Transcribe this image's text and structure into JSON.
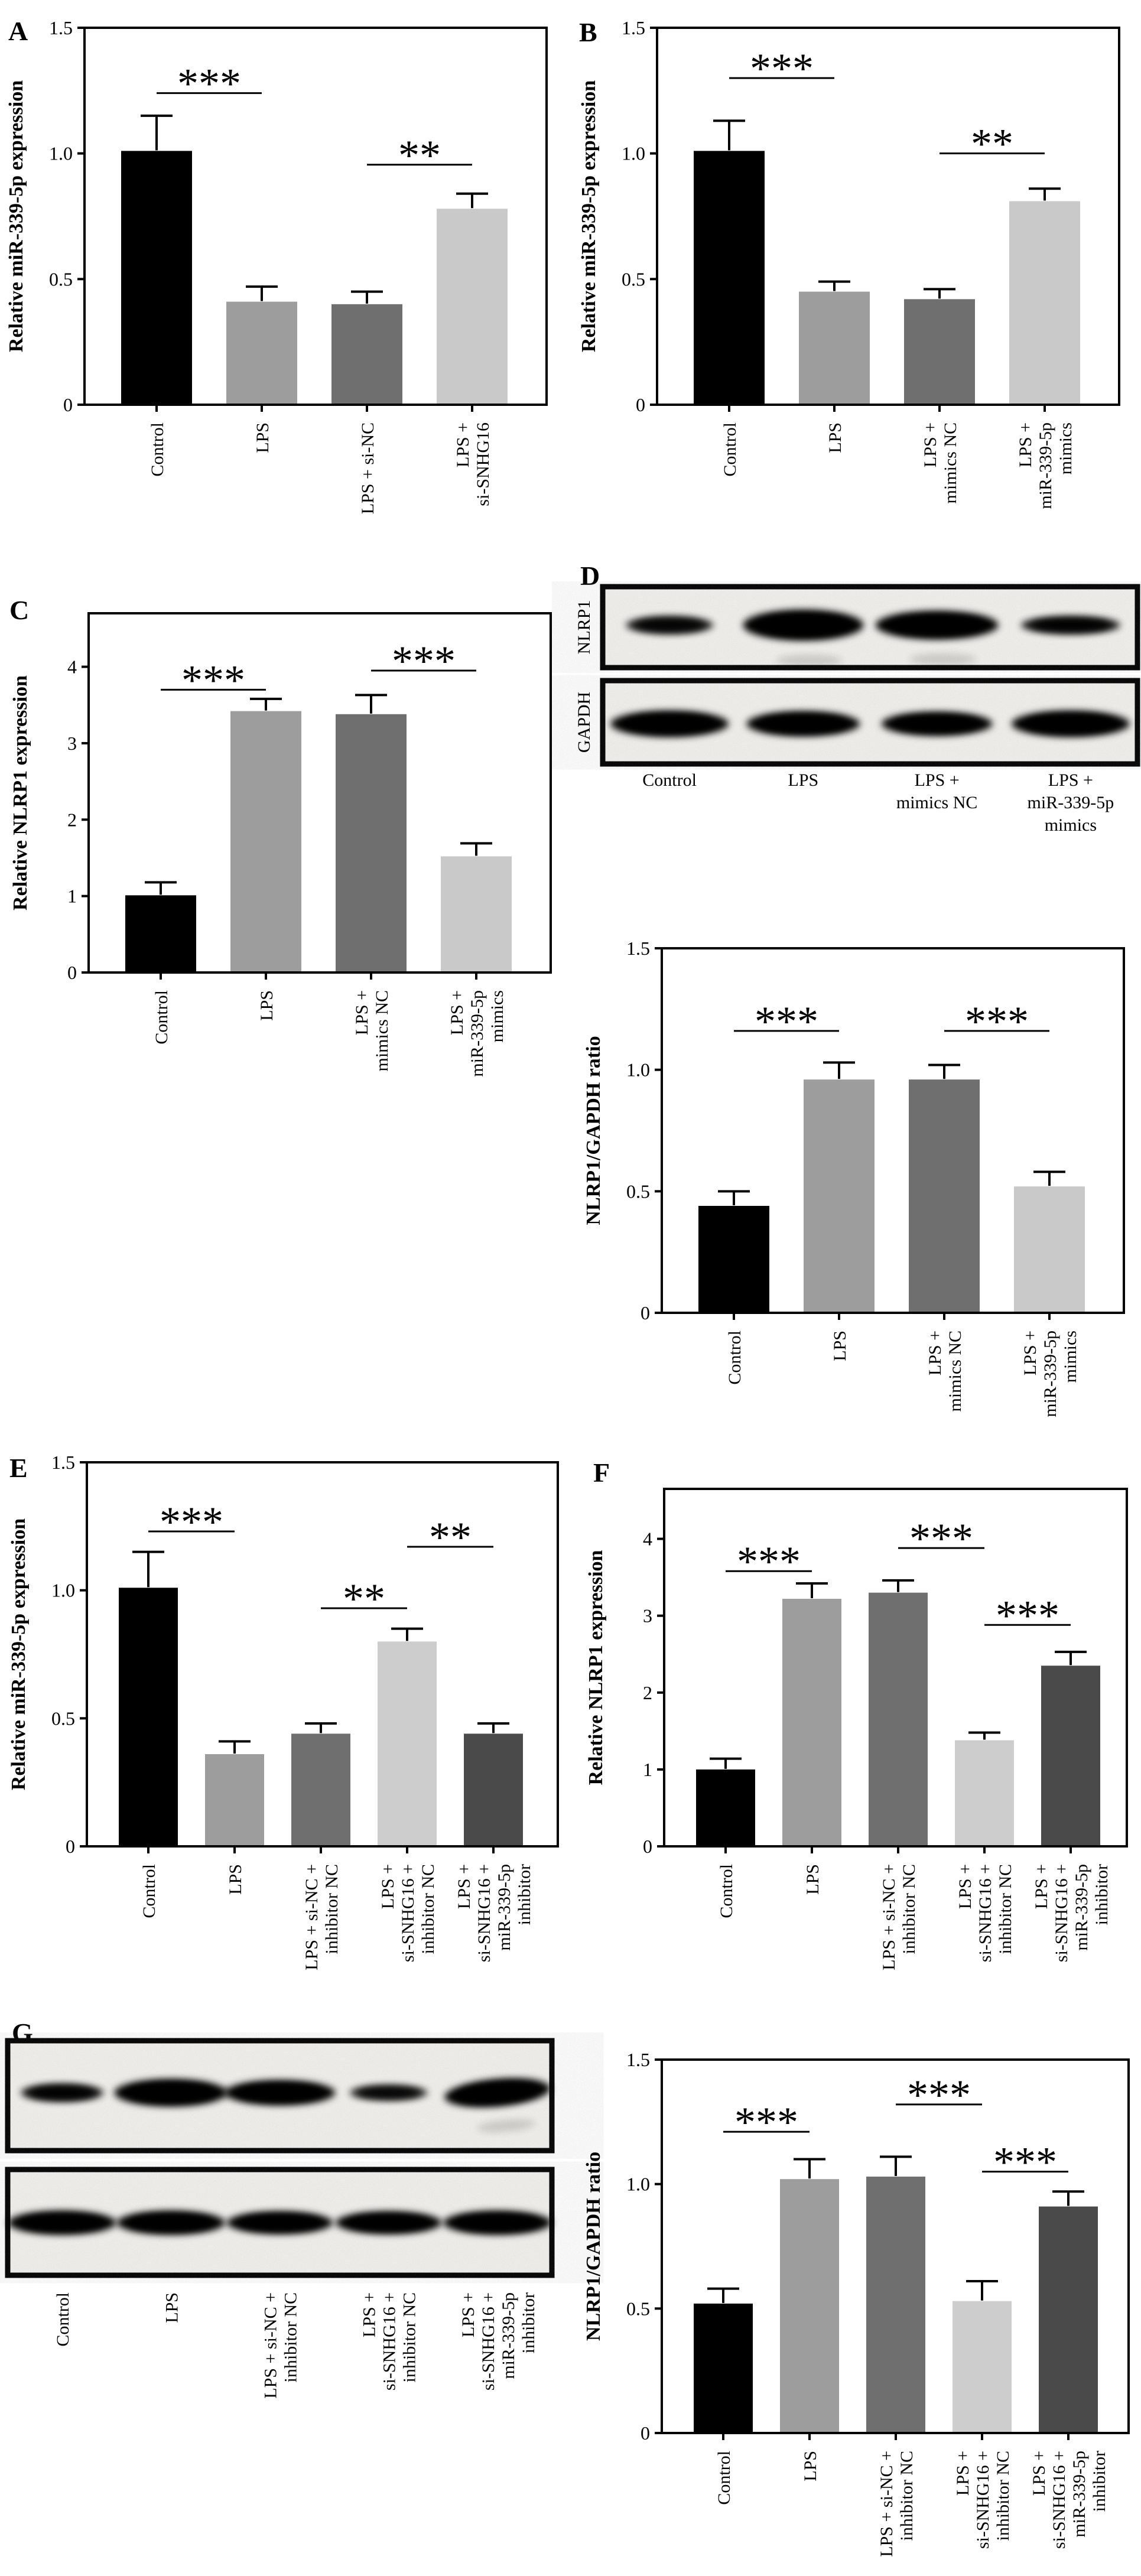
{
  "figure": {
    "panel_letters": {
      "A": "A",
      "B": "B",
      "C": "C",
      "D": "D",
      "E": "E",
      "F": "F",
      "G": "G"
    }
  },
  "chart_data": [
    {
      "panel": "A",
      "type": "bar",
      "ylabel": "Relative miR-339-5p expression",
      "ylim": [
        0,
        1.5
      ],
      "yticks": [
        {
          "v": 0,
          "label": "0"
        },
        {
          "v": 0.5,
          "label": "0.5"
        },
        {
          "v": 1.0,
          "label": "1.0"
        },
        {
          "v": 1.5,
          "label": "1.5"
        }
      ],
      "categories": [
        [
          "Control"
        ],
        [
          "LPS"
        ],
        [
          "LPS + si-NC"
        ],
        [
          "LPS +",
          "si-SNHG16"
        ]
      ],
      "values": [
        1.01,
        0.41,
        0.4,
        0.78
      ],
      "errors": [
        0.14,
        0.06,
        0.05,
        0.06
      ],
      "bar_colors": [
        "#000000",
        "#9d9d9d",
        "#6f6f6f",
        "#c9c9c9"
      ],
      "significance": [
        {
          "from": 0,
          "to": 1,
          "stars": "***",
          "y": 1.24
        },
        {
          "from": 2,
          "to": 3,
          "stars": "**",
          "y": 0.955
        }
      ]
    },
    {
      "panel": "B",
      "type": "bar",
      "ylabel": "Relative miR-339-5p expression",
      "ylim": [
        0,
        1.5
      ],
      "yticks": [
        {
          "v": 0,
          "label": "0"
        },
        {
          "v": 0.5,
          "label": "0.5"
        },
        {
          "v": 1.0,
          "label": "1.0"
        },
        {
          "v": 1.5,
          "label": "1.5"
        }
      ],
      "categories": [
        [
          "Control"
        ],
        [
          "LPS"
        ],
        [
          "LPS +",
          "mimics NC"
        ],
        [
          "LPS +",
          "miR-339-5p",
          "mimics"
        ]
      ],
      "values": [
        1.01,
        0.45,
        0.42,
        0.81
      ],
      "errors": [
        0.12,
        0.04,
        0.04,
        0.05
      ],
      "bar_colors": [
        "#000000",
        "#9d9d9d",
        "#6f6f6f",
        "#c9c9c9"
      ],
      "significance": [
        {
          "from": 0,
          "to": 1,
          "stars": "***",
          "y": 1.3
        },
        {
          "from": 2,
          "to": 3,
          "stars": "**",
          "y": 1.0
        }
      ]
    },
    {
      "panel": "C",
      "type": "bar",
      "ylabel": "Relative NLRP1 expression",
      "ylim": [
        0,
        4.7
      ],
      "yticks": [
        {
          "v": 0,
          "label": "0"
        },
        {
          "v": 1,
          "label": "1"
        },
        {
          "v": 2,
          "label": "2"
        },
        {
          "v": 3,
          "label": "3"
        },
        {
          "v": 4,
          "label": "4"
        }
      ],
      "categories": [
        [
          "Control"
        ],
        [
          "LPS"
        ],
        [
          "LPS +",
          "mimics NC"
        ],
        [
          "LPS +",
          "miR-339-5p",
          "mimics"
        ]
      ],
      "values": [
        1.01,
        3.42,
        3.38,
        1.52
      ],
      "errors": [
        0.17,
        0.16,
        0.25,
        0.17
      ],
      "bar_colors": [
        "#000000",
        "#9d9d9d",
        "#6f6f6f",
        "#c9c9c9"
      ],
      "significance": [
        {
          "from": 0,
          "to": 1,
          "stars": "***",
          "y": 3.7
        },
        {
          "from": 2,
          "to": 3,
          "stars": "***",
          "y": 3.95
        }
      ]
    },
    {
      "panel": "D",
      "type": "western_blot",
      "row_labels": [
        "NLRP1",
        "GAPDH"
      ],
      "lane_labels": [
        [
          "Control"
        ],
        [
          "LPS"
        ],
        [
          "LPS +",
          "mimics NC"
        ],
        [
          "LPS +",
          "miR-339-5p",
          "mimics"
        ]
      ],
      "lane_label_orientation": "horizontal",
      "bands": [
        [
          {
            "i": 0.88,
            "rx": 74,
            "ry": 15
          },
          {
            "i": 1,
            "rx": 102,
            "ry": 26,
            "smudge": true
          },
          {
            "i": 1,
            "rx": 104,
            "ry": 24,
            "smudge": true
          },
          {
            "i": 0.92,
            "rx": 84,
            "ry": 15
          }
        ],
        [
          {
            "i": 1,
            "rx": 100,
            "ry": 22
          },
          {
            "i": 1,
            "rx": 96,
            "ry": 21
          },
          {
            "i": 1,
            "rx": 94,
            "ry": 20
          },
          {
            "i": 1,
            "rx": 100,
            "ry": 22
          }
        ]
      ]
    },
    {
      "panel": "Dratio",
      "type": "bar",
      "ylabel": "NLRP1/GAPDH ratio",
      "ylim": [
        0,
        1.5
      ],
      "yticks": [
        {
          "v": 0,
          "label": "0"
        },
        {
          "v": 0.5,
          "label": "0.5"
        },
        {
          "v": 1.0,
          "label": "1.0"
        },
        {
          "v": 1.5,
          "label": "1.5"
        }
      ],
      "categories": [
        [
          "Control"
        ],
        [
          "LPS"
        ],
        [
          "LPS +",
          "mimics NC"
        ],
        [
          "LPS +",
          "miR-339-5p",
          "mimics"
        ]
      ],
      "values": [
        0.44,
        0.96,
        0.96,
        0.52
      ],
      "errors": [
        0.06,
        0.07,
        0.06,
        0.06
      ],
      "bar_colors": [
        "#000000",
        "#9d9d9d",
        "#6f6f6f",
        "#c9c9c9"
      ],
      "significance": [
        {
          "from": 0,
          "to": 1,
          "stars": "***",
          "y": 1.16
        },
        {
          "from": 2,
          "to": 3,
          "stars": "***",
          "y": 1.16
        }
      ]
    },
    {
      "panel": "E",
      "type": "bar",
      "ylabel": "Relative miR-339-5p expression",
      "ylim": [
        0,
        1.5
      ],
      "yticks": [
        {
          "v": 0,
          "label": "0"
        },
        {
          "v": 0.5,
          "label": "0.5"
        },
        {
          "v": 1.0,
          "label": "1.0"
        },
        {
          "v": 1.5,
          "label": "1.5"
        }
      ],
      "categories": [
        [
          "Control"
        ],
        [
          "LPS"
        ],
        [
          "LPS + si-NC +",
          "inhibitor NC"
        ],
        [
          "LPS +",
          "si-SNHG16 +",
          "inhibitor NC"
        ],
        [
          "LPS +",
          "si-SNHG16 +",
          "miR-339-5p",
          "inhibitor"
        ]
      ],
      "values": [
        1.01,
        0.36,
        0.44,
        0.8,
        0.44
      ],
      "errors": [
        0.14,
        0.05,
        0.04,
        0.05,
        0.04
      ],
      "bar_colors": [
        "#000000",
        "#9d9d9d",
        "#6f6f6f",
        "#cdcdcd",
        "#4a4a4a"
      ],
      "significance": [
        {
          "from": 0,
          "to": 1,
          "stars": "***",
          "y": 1.23
        },
        {
          "from": 2,
          "to": 3,
          "stars": "**",
          "y": 0.93
        },
        {
          "from": 3,
          "to": 4,
          "stars": "**",
          "y": 1.17
        }
      ]
    },
    {
      "panel": "F",
      "type": "bar",
      "ylabel": "Relative NLRP1 expression",
      "ylim": [
        0,
        4.65
      ],
      "yticks": [
        {
          "v": 0,
          "label": "0"
        },
        {
          "v": 1,
          "label": "1"
        },
        {
          "v": 2,
          "label": "2"
        },
        {
          "v": 3,
          "label": "3"
        },
        {
          "v": 4,
          "label": "4"
        }
      ],
      "categories": [
        [
          "Control"
        ],
        [
          "LPS"
        ],
        [
          "LPS + si-NC +",
          "inhibitor NC"
        ],
        [
          "LPS +",
          "si-SNHG16 +",
          "inhibitor NC"
        ],
        [
          "LPS +",
          "si-SNHG16 +",
          "miR-339-5p",
          "inhibitor"
        ]
      ],
      "values": [
        1.0,
        3.22,
        3.3,
        1.38,
        2.35
      ],
      "errors": [
        0.14,
        0.2,
        0.16,
        0.1,
        0.18
      ],
      "bar_colors": [
        "#000000",
        "#9d9d9d",
        "#6f6f6f",
        "#cdcdcd",
        "#4a4a4a"
      ],
      "significance": [
        {
          "from": 0,
          "to": 1,
          "stars": "***",
          "y": 3.58
        },
        {
          "from": 2,
          "to": 3,
          "stars": "***",
          "y": 3.88
        },
        {
          "from": 3,
          "to": 4,
          "stars": "***",
          "y": 2.88
        }
      ]
    },
    {
      "panel": "G",
      "type": "western_blot",
      "row_labels": [],
      "lane_labels": [
        [
          "Control"
        ],
        [
          "LPS"
        ],
        [
          "LPS + si-NC +",
          "inhibitor NC"
        ],
        [
          "LPS +",
          "si-SNHG16 +",
          "inhibitor NC"
        ],
        [
          "LPS +",
          "si-SNHG16 +",
          "miR-339-5p",
          "inhibitor"
        ]
      ],
      "lane_label_orientation": "vertical",
      "bands": [
        [
          {
            "i": 0.92,
            "rx": 70,
            "ry": 15
          },
          {
            "i": 1,
            "rx": 96,
            "ry": 23
          },
          {
            "i": 1,
            "rx": 94,
            "ry": 21
          },
          {
            "i": 0.85,
            "rx": 66,
            "ry": 13
          },
          {
            "i": 1,
            "rx": 90,
            "ry": 23,
            "rot": -5,
            "smudge": true
          }
        ],
        [
          {
            "i": 1,
            "rx": 92,
            "ry": 20
          },
          {
            "i": 1,
            "rx": 92,
            "ry": 20
          },
          {
            "i": 1,
            "rx": 90,
            "ry": 19
          },
          {
            "i": 1,
            "rx": 90,
            "ry": 19
          },
          {
            "i": 1,
            "rx": 92,
            "ry": 20
          }
        ]
      ]
    },
    {
      "panel": "Gratio",
      "type": "bar",
      "ylabel": "NLRP1/GAPDH ratio",
      "ylim": [
        0,
        1.5
      ],
      "yticks": [
        {
          "v": 0,
          "label": "0"
        },
        {
          "v": 0.5,
          "label": "0.5"
        },
        {
          "v": 1.0,
          "label": "1.0"
        },
        {
          "v": 1.5,
          "label": "1.5"
        }
      ],
      "categories": [
        [
          "Control"
        ],
        [
          "LPS"
        ],
        [
          "LPS + si-NC +",
          "inhibitor NC"
        ],
        [
          "LPS +",
          "si-SNHG16 +",
          "inhibitor NC"
        ],
        [
          "LPS +",
          "si-SNHG16 +",
          "miR-339-5p",
          "inhibitor"
        ]
      ],
      "values": [
        0.52,
        1.02,
        1.03,
        0.53,
        0.91
      ],
      "errors": [
        0.06,
        0.08,
        0.08,
        0.08,
        0.06
      ],
      "bar_colors": [
        "#000000",
        "#9d9d9d",
        "#6f6f6f",
        "#cdcdcd",
        "#4a4a4a"
      ],
      "significance": [
        {
          "from": 0,
          "to": 1,
          "stars": "***",
          "y": 1.21
        },
        {
          "from": 2,
          "to": 3,
          "stars": "***",
          "y": 1.32
        },
        {
          "from": 3,
          "to": 4,
          "stars": "***",
          "y": 1.05
        }
      ]
    }
  ]
}
